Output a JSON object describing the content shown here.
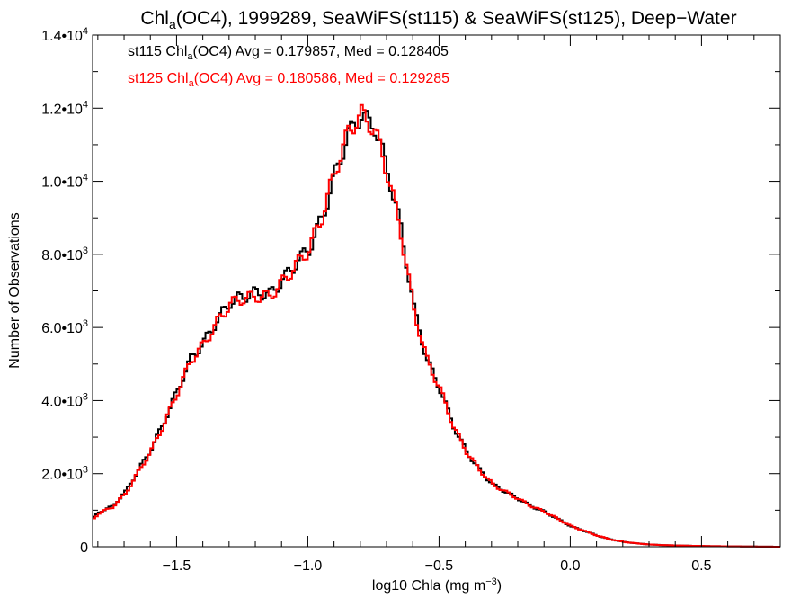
{
  "chart_data": {
    "type": "line",
    "title": {
      "prefix": "Chl",
      "subscript": "a",
      "rest": "(OC4), 1999289, SeaWiFS(st115) & SeaWiFS(st125), Deep−Water"
    },
    "xlabel": {
      "text": "log10 Chla (mg m",
      "superscript": "−3",
      "close": ")"
    },
    "ylabel": "Number of Observations",
    "xlim": [
      -1.82,
      0.8
    ],
    "ylim": [
      0,
      14000
    ],
    "x_ticks": [
      {
        "value": -1.5,
        "label": "−1.5"
      },
      {
        "value": -1.0,
        "label": "−1.0"
      },
      {
        "value": -0.5,
        "label": "−0.5"
      },
      {
        "value": 0.0,
        "label": "0.0"
      },
      {
        "value": 0.5,
        "label": "0.5"
      }
    ],
    "y_ticks": [
      {
        "value": 0,
        "mantissa": "0",
        "exponent": ""
      },
      {
        "value": 2000,
        "mantissa": "2.0•10",
        "exponent": "3"
      },
      {
        "value": 4000,
        "mantissa": "4.0•10",
        "exponent": "3"
      },
      {
        "value": 6000,
        "mantissa": "6.0•10",
        "exponent": "3"
      },
      {
        "value": 8000,
        "mantissa": "8.0•10",
        "exponent": "3"
      },
      {
        "value": 10000,
        "mantissa": "1.0•10",
        "exponent": "4"
      },
      {
        "value": 12000,
        "mantissa": "1.2•10",
        "exponent": "4"
      },
      {
        "value": 14000,
        "mantissa": "1.4•10",
        "exponent": "4"
      }
    ],
    "x_minor_step": 0.1,
    "y_minor_step": 1000,
    "grid": false,
    "legend_position": "top-left",
    "series": [
      {
        "legend": {
          "label": "st115 Chl",
          "subscript": "a",
          "rest": "(OC4) Avg = 0.179857, Med = 0.128405"
        },
        "color": "#000000",
        "step": "histogram",
        "x": [
          -1.82,
          -1.8,
          -1.75,
          -1.7,
          -1.65,
          -1.6,
          -1.55,
          -1.5,
          -1.45,
          -1.4,
          -1.35,
          -1.3,
          -1.25,
          -1.2,
          -1.15,
          -1.1,
          -1.05,
          -1.0,
          -0.95,
          -0.9,
          -0.85,
          -0.8,
          -0.75,
          -0.7,
          -0.65,
          -0.6,
          -0.55,
          -0.5,
          -0.45,
          -0.4,
          -0.35,
          -0.3,
          -0.25,
          -0.2,
          -0.15,
          -0.1,
          -0.05,
          0.0,
          0.05,
          0.1,
          0.15,
          0.2,
          0.25,
          0.3,
          0.35,
          0.4,
          0.5,
          0.6,
          0.7,
          0.8
        ],
        "y": [
          800,
          950,
          1100,
          1500,
          2100,
          2700,
          3450,
          4300,
          5150,
          5600,
          6200,
          6700,
          6850,
          6950,
          6900,
          7300,
          7750,
          8150,
          9000,
          10200,
          11300,
          11800,
          11500,
          10300,
          8700,
          6500,
          5100,
          4300,
          3300,
          2600,
          2100,
          1700,
          1500,
          1300,
          1100,
          950,
          750,
          550,
          430,
          300,
          200,
          130,
          90,
          60,
          45,
          35,
          20,
          10,
          5,
          0
        ]
      },
      {
        "legend": {
          "label": "st125 Chl",
          "subscript": "a",
          "rest": "(OC4) Avg = 0.180586, Med = 0.129285"
        },
        "color": "#ff0000",
        "step": "histogram",
        "x": [
          -1.82,
          -1.8,
          -1.75,
          -1.7,
          -1.65,
          -1.6,
          -1.55,
          -1.5,
          -1.45,
          -1.4,
          -1.35,
          -1.3,
          -1.25,
          -1.2,
          -1.15,
          -1.1,
          -1.05,
          -1.0,
          -0.95,
          -0.9,
          -0.85,
          -0.8,
          -0.75,
          -0.7,
          -0.65,
          -0.6,
          -0.55,
          -0.5,
          -0.45,
          -0.4,
          -0.35,
          -0.3,
          -0.25,
          -0.2,
          -0.15,
          -0.1,
          -0.05,
          0.0,
          0.05,
          0.1,
          0.15,
          0.2,
          0.25,
          0.3,
          0.35,
          0.4,
          0.5,
          0.6,
          0.7,
          0.8
        ],
        "y": [
          780,
          920,
          1080,
          1450,
          2050,
          2650,
          3400,
          4250,
          5100,
          5550,
          6150,
          6650,
          6800,
          6850,
          6850,
          7250,
          7700,
          8150,
          9050,
          10300,
          11350,
          11850,
          11400,
          10200,
          8600,
          6450,
          5100,
          4300,
          3300,
          2600,
          2100,
          1700,
          1500,
          1300,
          1100,
          950,
          750,
          560,
          430,
          300,
          200,
          130,
          90,
          60,
          45,
          35,
          20,
          10,
          5,
          0
        ]
      }
    ]
  }
}
